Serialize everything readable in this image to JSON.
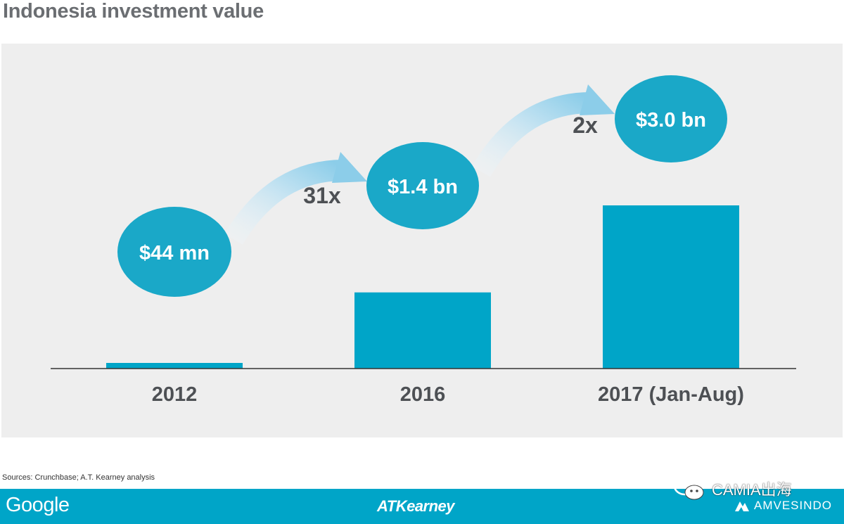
{
  "title": "Indonesia investment value",
  "chart_data": {
    "type": "bar",
    "categories": [
      "2012",
      "2016",
      "2017 (Jan-Aug)"
    ],
    "values": [
      0.044,
      1.4,
      3.0
    ],
    "value_labels": [
      "$44 mn",
      "$1.4 bn",
      "$3.0 bn"
    ],
    "growth_labels": [
      "31x",
      "2x"
    ],
    "unit": "USD bn",
    "ylim": [
      0,
      3.0
    ],
    "grid": false,
    "legend": "none",
    "bar_color": "#00a5c8",
    "bubble_color": "#1aa8c8",
    "arrow_color": "#cfe8f4"
  },
  "source": "Sources: Crunchbase; A.T. Kearney analysis",
  "footer": {
    "left_logo": "Google",
    "center_logo": "ATKearney",
    "right_logo": "AMVESINDO",
    "background": "#00a5c8"
  },
  "watermark": "CAMIA出海"
}
